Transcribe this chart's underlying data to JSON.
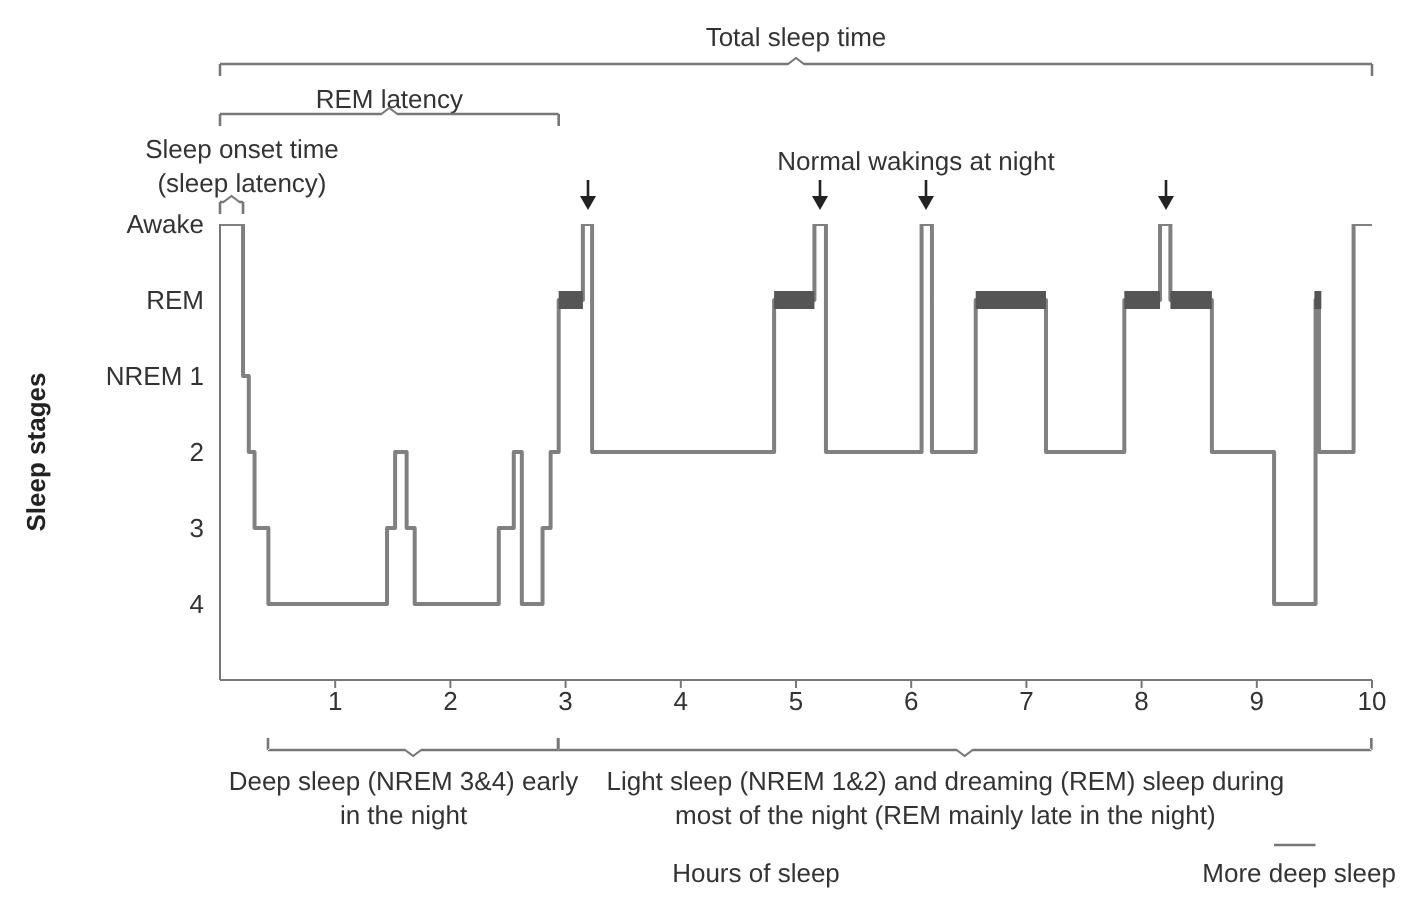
{
  "chart_data": {
    "type": "step",
    "ylabel": "Sleep stages",
    "xlim": [
      0,
      10
    ],
    "xticks": [
      1,
      2,
      3,
      4,
      5,
      6,
      7,
      8,
      9,
      10
    ],
    "ylim": [
      5,
      -1
    ],
    "yticks": [
      {
        "value": -1,
        "label": "Awake"
      },
      {
        "value": 0,
        "label": "REM"
      },
      {
        "value": 1,
        "label": "NREM 1"
      },
      2,
      3,
      4
    ],
    "grid": false,
    "series": [
      {
        "type": "step",
        "color": "#808080",
        "x": [
          0,
          0.2,
          0.25,
          0.3,
          0.42,
          1.45,
          1.52,
          1.62,
          1.69,
          2.42,
          2.55,
          2.62,
          2.8,
          2.87,
          2.94,
          3.15,
          3.23,
          4.81,
          5.16,
          5.26,
          6.09,
          6.18,
          6.56,
          7.17,
          7.85,
          8.16,
          8.25,
          8.61,
          9.15,
          9.51,
          9.54,
          9.84,
          10
        ],
        "values": [
          -1,
          1,
          2,
          3,
          4,
          3,
          2,
          3,
          4,
          3,
          2,
          4,
          3,
          2,
          0,
          -1,
          2,
          0,
          -1,
          2,
          -1,
          2,
          0,
          2,
          0,
          -1,
          0,
          2,
          4,
          0,
          2,
          -1,
          -1
        ]
      },
      {
        "type": "line",
        "color": "#555555",
        "x": [
          2.94,
          3.15
        ],
        "values": [
          0,
          0
        ]
      },
      {
        "type": "line",
        "color": "#555555",
        "x": [
          4.81,
          5.16
        ],
        "values": [
          0,
          0
        ]
      },
      {
        "type": "line",
        "color": "#555555",
        "x": [
          6.56,
          7.17
        ],
        "values": [
          0,
          0
        ]
      },
      {
        "type": "line",
        "color": "#555555",
        "x": [
          7.85,
          8.16
        ],
        "values": [
          0,
          0
        ]
      },
      {
        "type": "line",
        "color": "#555555",
        "x": [
          8.25,
          8.61
        ],
        "values": [
          0,
          0
        ]
      },
      {
        "type": "line",
        "color": "#555555",
        "x": [
          9.5,
          9.56
        ],
        "values": [
          0,
          0
        ]
      }
    ],
    "annotations": [
      "Total sleep time",
      "REM latency",
      "Sleep onset time (sleep latency)",
      "Normal wakings at night",
      "Deep sleep (NREM 3&4) early in the night",
      "Light sleep (NREM 1&2) and dreaming (REM) sleep during most of the night (REM mainly late in the night)",
      "More deep sleep",
      "Hours of sleep"
    ]
  }
}
